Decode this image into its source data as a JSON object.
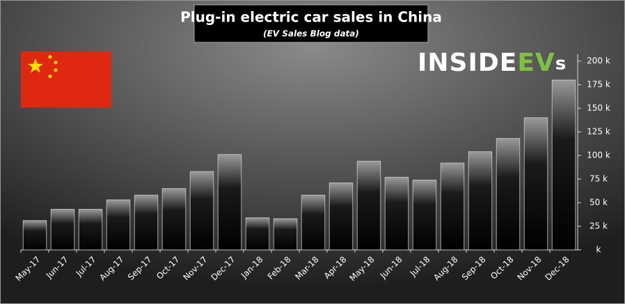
{
  "chart_data": {
    "type": "bar",
    "title": "Plug-in electric car sales in China",
    "subtitle": "(EV Sales Blog data)",
    "logo": [
      "INSIDE",
      "EV",
      "s"
    ],
    "categories": [
      "May-17",
      "Jun-17",
      "Jul-17",
      "Aug-17",
      "Sep-17",
      "Oct-17",
      "Nov-17",
      "Dec-17",
      "Jan-18",
      "Feb-18",
      "Mar-18",
      "Apr-18",
      "May-18",
      "Jun-18",
      "Jul-18",
      "Aug-18",
      "Sep-18",
      "Oct-18",
      "Nov-18",
      "Dec-18"
    ],
    "values": [
      31,
      43,
      43,
      53,
      58,
      65,
      83,
      101,
      34,
      33,
      58,
      71,
      94,
      77,
      74,
      92,
      104,
      118,
      140,
      180
    ],
    "color": "#000000",
    "ylim": [
      0,
      200
    ],
    "yticks": [
      {
        "value": 0,
        "label": "k"
      },
      {
        "value": 25,
        "label": "25 k"
      },
      {
        "value": 50,
        "label": "50 k"
      },
      {
        "value": 75,
        "label": "75 k"
      },
      {
        "value": 100,
        "label": "100 k"
      },
      {
        "value": 125,
        "label": "125 k"
      },
      {
        "value": 150,
        "label": "150 k"
      },
      {
        "value": 175,
        "label": "175 k"
      },
      {
        "value": 200,
        "label": "200 k"
      }
    ],
    "grid": false
  }
}
